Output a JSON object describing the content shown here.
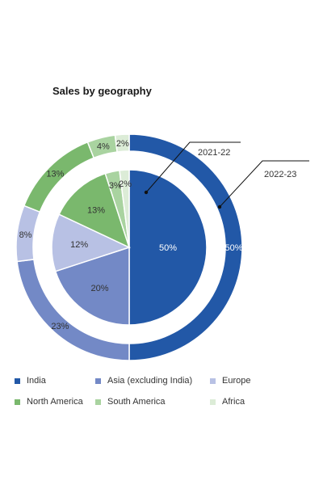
{
  "chart_data": {
    "type": "pie",
    "title": "Sales by geography",
    "categories": [
      "India",
      "Asia (excluding India)",
      "Europe",
      "North America",
      "South America",
      "Africa"
    ],
    "colors": [
      "#2258a7",
      "#7389c6",
      "#b8c1e4",
      "#7ab86d",
      "#a9d3a0",
      "#dcecd7"
    ],
    "series": [
      {
        "name": "2021-22",
        "ring": "inner",
        "values": [
          50,
          20,
          12,
          13,
          3,
          2
        ]
      },
      {
        "name": "2022-23",
        "ring": "outer",
        "values": [
          50,
          23,
          8,
          13,
          4,
          2
        ]
      }
    ],
    "value_suffix": "%",
    "legend_position": "bottom"
  }
}
